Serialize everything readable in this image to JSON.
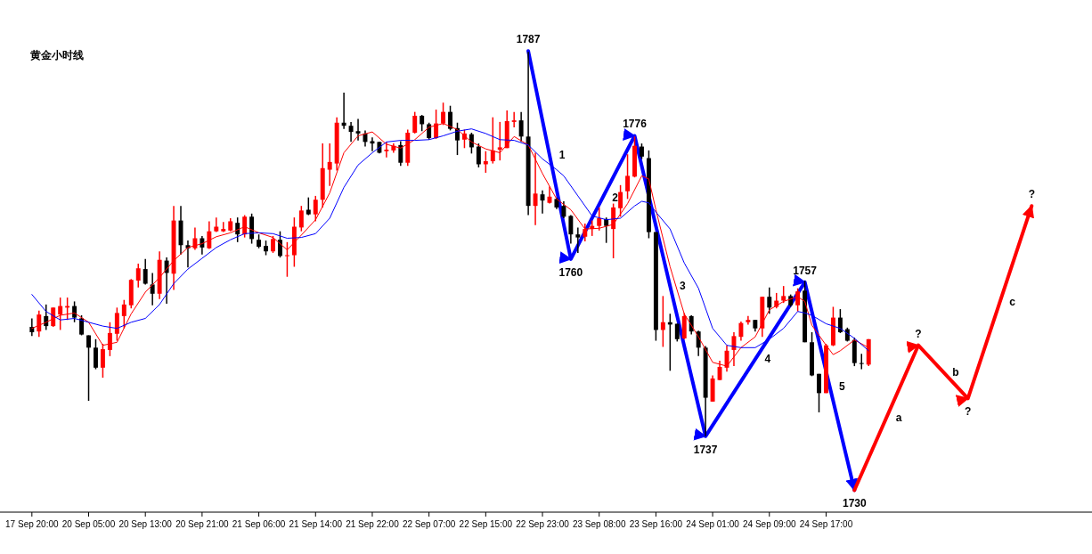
{
  "chart_data": {
    "type": "candlestick",
    "title": "黄金小时线",
    "categories": [
      "17 Sep 20:00",
      null,
      null,
      null,
      null,
      null,
      null,
      null,
      "20 Sep 05:00",
      null,
      null,
      null,
      null,
      null,
      null,
      null,
      "20 Sep 13:00",
      null,
      null,
      null,
      null,
      null,
      null,
      null,
      "20 Sep 21:00",
      null,
      null,
      null,
      null,
      null,
      null,
      null,
      "21 Sep 06:00",
      null,
      null,
      null,
      null,
      null,
      null,
      null,
      "21 Sep 14:00",
      null,
      null,
      null,
      null,
      null,
      null,
      null,
      "21 Sep 22:00",
      null,
      null,
      null,
      null,
      null,
      null,
      null,
      "22 Sep 07:00",
      null,
      null,
      null,
      null,
      null,
      null,
      null,
      "22 Sep 15:00",
      null,
      null,
      null,
      null,
      null,
      null,
      null,
      "22 Sep 23:00",
      null,
      null,
      null,
      null,
      null,
      null,
      null,
      "23 Sep 08:00",
      null,
      null,
      null,
      null,
      null,
      null,
      null,
      "23 Sep 16:00",
      null,
      null,
      null,
      null,
      null,
      null,
      null,
      "24 Sep 01:00",
      null,
      null,
      null,
      null,
      null,
      null,
      null,
      "24 Sep 09:00",
      null,
      null,
      null,
      null,
      null,
      null,
      null,
      "24 Sep 17:00",
      null,
      null,
      null,
      null,
      null,
      null,
      null,
      null,
      null,
      null,
      null,
      null,
      null,
      null,
      null,
      null,
      null,
      null,
      null,
      null,
      null,
      null,
      null,
      null,
      null,
      null,
      null,
      null,
      null,
      null,
      null,
      null,
      null,
      null,
      null,
      null,
      null
    ],
    "ohlc": [
      [
        1751.2,
        1752.3,
        1750.0,
        1750.5
      ],
      [
        1750.6,
        1753.3,
        1749.9,
        1752.8
      ],
      [
        1752.6,
        1754.1,
        1750.8,
        1751.3
      ],
      [
        1751.3,
        1753.7,
        1751.2,
        1753.7
      ],
      [
        1752.8,
        1755.0,
        1750.8,
        1753.9
      ],
      [
        1753.7,
        1755.0,
        1752.1,
        1753.9
      ],
      [
        1753.9,
        1754.5,
        1751.8,
        1752.4
      ],
      [
        1752.3,
        1752.7,
        1750.1,
        1750.2
      ],
      [
        1750.1,
        1750.1,
        1741.6,
        1748.5
      ],
      [
        1748.5,
        1749.6,
        1745.7,
        1745.9
      ],
      [
        1745.9,
        1749.0,
        1744.6,
        1748.3
      ],
      [
        1748.2,
        1751.8,
        1747.4,
        1750.4
      ],
      [
        1750.3,
        1753.7,
        1749.4,
        1753.0
      ],
      [
        1752.6,
        1754.7,
        1751.0,
        1754.1
      ],
      [
        1754.0,
        1757.4,
        1753.6,
        1757.3
      ],
      [
        1757.2,
        1759.4,
        1756.3,
        1758.8
      ],
      [
        1758.7,
        1760.0,
        1756.7,
        1756.8
      ],
      [
        1756.7,
        1758.2,
        1754.0,
        1755.5
      ],
      [
        1755.5,
        1761.0,
        1754.8,
        1759.9
      ],
      [
        1759.8,
        1760.2,
        1754.2,
        1758.2
      ],
      [
        1758.1,
        1766.9,
        1756.0,
        1765.0
      ],
      [
        1765.0,
        1766.9,
        1760.6,
        1761.8
      ],
      [
        1761.8,
        1762.4,
        1758.9,
        1761.4
      ],
      [
        1761.4,
        1764.1,
        1761.2,
        1762.7
      ],
      [
        1762.7,
        1763.0,
        1760.6,
        1761.5
      ],
      [
        1761.4,
        1764.9,
        1761.3,
        1763.6
      ],
      [
        1763.6,
        1765.4,
        1763.5,
        1764.2
      ],
      [
        1763.6,
        1764.8,
        1763.5,
        1763.9
      ],
      [
        1763.7,
        1765.3,
        1763.6,
        1764.9
      ],
      [
        1764.7,
        1765.4,
        1762.2,
        1763.2
      ],
      [
        1763.2,
        1765.7,
        1762.8,
        1765.5
      ],
      [
        1765.5,
        1765.9,
        1762.0,
        1762.6
      ],
      [
        1762.5,
        1763.2,
        1761.4,
        1761.6
      ],
      [
        1761.7,
        1762.4,
        1760.5,
        1761.0
      ],
      [
        1761.0,
        1763.0,
        1760.8,
        1762.6
      ],
      [
        1762.5,
        1763.6,
        1760.2,
        1760.4
      ],
      [
        1760.4,
        1762.2,
        1757.7,
        1760.5
      ],
      [
        1760.5,
        1765.4,
        1759.0,
        1764.2
      ],
      [
        1764.1,
        1766.9,
        1763.6,
        1766.3
      ],
      [
        1766.4,
        1768.0,
        1765.7,
        1765.8
      ],
      [
        1765.8,
        1768.2,
        1764.9,
        1767.7
      ],
      [
        1767.7,
        1775.0,
        1766.7,
        1771.8
      ],
      [
        1771.6,
        1775.0,
        1769.5,
        1772.6
      ],
      [
        1772.4,
        1778.4,
        1771.5,
        1777.7
      ],
      [
        1777.7,
        1781.6,
        1776.9,
        1777.3
      ],
      [
        1777.3,
        1777.8,
        1775.2,
        1776.5
      ],
      [
        1776.6,
        1778.2,
        1775.4,
        1776.3
      ],
      [
        1776.3,
        1776.7,
        1774.6,
        1775.2
      ],
      [
        1775.3,
        1775.8,
        1774.0,
        1775.0
      ],
      [
        1775.2,
        1775.2,
        1773.7,
        1773.8
      ],
      [
        1774.0,
        1775.2,
        1773.2,
        1774.2
      ],
      [
        1774.1,
        1775.0,
        1773.8,
        1774.7
      ],
      [
        1774.8,
        1775.3,
        1772.1,
        1772.5
      ],
      [
        1772.5,
        1776.8,
        1772.1,
        1776.4
      ],
      [
        1776.4,
        1779.1,
        1776.3,
        1778.6
      ],
      [
        1778.6,
        1778.7,
        1776.6,
        1777.5
      ],
      [
        1777.5,
        1777.7,
        1775.5,
        1775.7
      ],
      [
        1775.7,
        1779.4,
        1775.6,
        1777.6
      ],
      [
        1777.6,
        1780.3,
        1777.4,
        1779.1
      ],
      [
        1779.1,
        1779.9,
        1776.7,
        1776.9
      ],
      [
        1777.0,
        1777.7,
        1773.5,
        1775.4
      ],
      [
        1775.5,
        1776.8,
        1774.4,
        1776.3
      ],
      [
        1776.2,
        1776.4,
        1773.7,
        1774.5
      ],
      [
        1774.6,
        1775.0,
        1771.9,
        1772.3
      ],
      [
        1772.3,
        1774.0,
        1771.2,
        1772.7
      ],
      [
        1772.7,
        1778.4,
        1772.4,
        1774.1
      ],
      [
        1774.2,
        1777.8,
        1772.8,
        1774.5
      ],
      [
        1774.4,
        1779.3,
        1774.4,
        1777.9
      ],
      [
        1777.8,
        1779.1,
        1777.1,
        1778.0
      ],
      [
        1778.0,
        1779.1,
        1775.2,
        1775.9
      ],
      [
        1775.9,
        1786.9,
        1765.7,
        1766.9
      ],
      [
        1766.9,
        1773.8,
        1764.4,
        1768.5
      ],
      [
        1768.4,
        1768.9,
        1765.9,
        1767.6
      ],
      [
        1767.3,
        1769.4,
        1767.2,
        1768.1
      ],
      [
        1767.8,
        1768.0,
        1766.5,
        1766.7
      ],
      [
        1766.9,
        1767.5,
        1765.3,
        1765.5
      ],
      [
        1765.6,
        1765.7,
        1762.0,
        1763.2
      ],
      [
        1763.2,
        1764.1,
        1760.8,
        1762.8
      ],
      [
        1762.9,
        1764.6,
        1762.3,
        1763.9
      ],
      [
        1763.9,
        1765.0,
        1763.0,
        1764.3
      ],
      [
        1764.3,
        1766.7,
        1763.7,
        1765.3
      ],
      [
        1765.2,
        1765.4,
        1762.1,
        1764.3
      ],
      [
        1763.9,
        1767.2,
        1760.1,
        1766.7
      ],
      [
        1766.6,
        1769.6,
        1765.5,
        1768.7
      ],
      [
        1768.8,
        1773.6,
        1767.8,
        1770.8
      ],
      [
        1770.7,
        1775.9,
        1770.6,
        1774.7
      ],
      [
        1774.6,
        1775.0,
        1773.0,
        1773.3
      ],
      [
        1773.1,
        1774.1,
        1762.7,
        1763.5
      ],
      [
        1763.5,
        1763.5,
        1749.4,
        1750.8
      ],
      [
        1750.8,
        1755.2,
        1748.6,
        1751.8
      ],
      [
        1751.8,
        1752.9,
        1745.5,
        1751.5
      ],
      [
        1751.6,
        1751.6,
        1749.3,
        1749.6
      ],
      [
        1749.7,
        1753.0,
        1749.6,
        1752.6
      ],
      [
        1752.6,
        1752.7,
        1750.2,
        1750.6
      ],
      [
        1750.6,
        1750.7,
        1747.4,
        1748.5
      ],
      [
        1748.5,
        1748.7,
        1737.0,
        1742.0
      ],
      [
        1741.5,
        1744.9,
        1741.5,
        1744.5
      ],
      [
        1744.3,
        1746.8,
        1744.3,
        1746.0
      ],
      [
        1745.9,
        1748.8,
        1745.4,
        1748.1
      ],
      [
        1748.2,
        1750.5,
        1746.1,
        1750.0
      ],
      [
        1749.9,
        1751.9,
        1749.4,
        1751.7
      ],
      [
        1751.8,
        1752.6,
        1751.5,
        1752.1
      ],
      [
        1752.1,
        1752.1,
        1750.6,
        1751.0
      ],
      [
        1751.0,
        1755.1,
        1749.9,
        1755.1
      ],
      [
        1755.1,
        1756.3,
        1752.9,
        1753.7
      ],
      [
        1753.8,
        1755.6,
        1753.6,
        1754.6
      ],
      [
        1754.6,
        1756.5,
        1754.3,
        1755.2
      ],
      [
        1755.2,
        1755.4,
        1753.8,
        1754.0
      ],
      [
        1754.0,
        1756.2,
        1753.2,
        1755.8
      ],
      [
        1755.9,
        1757.2,
        1749.2,
        1749.2
      ],
      [
        1749.2,
        1750.5,
        1744.8,
        1744.9
      ],
      [
        1745.1,
        1745.1,
        1740.1,
        1742.6
      ],
      [
        1742.6,
        1749.0,
        1742.6,
        1748.8
      ],
      [
        1748.8,
        1753.8,
        1748.7,
        1752.4
      ],
      [
        1752.4,
        1753.5,
        1750.4,
        1750.5
      ],
      [
        1750.9,
        1751.1,
        1749.3,
        1749.4
      ],
      [
        1749.5,
        1749.8,
        1746.1,
        1746.5
      ],
      [
        1746.5,
        1747.7,
        1745.7,
        1746.4
      ],
      [
        1746.3,
        1749.6,
        1746.1,
        1749.6
      ],
      null,
      null,
      null,
      null,
      null,
      null,
      null,
      null,
      null,
      null,
      null,
      null,
      null,
      null,
      null,
      null,
      null,
      null,
      null,
      null,
      null,
      null,
      null,
      null,
      null,
      null,
      null,
      null,
      null,
      null,
      null
    ],
    "series": [
      {
        "type": "line",
        "color": "#ff0000",
        "values": [
          1751.0,
          null,
          1751.8,
          null,
          1752.7,
          null,
          1753.0,
          null,
          1751.8,
          null,
          1748.8,
          null,
          1749.2,
          null,
          1752.9,
          null,
          1755.7,
          null,
          1757.6,
          null,
          1759.8,
          null,
          1761.5,
          null,
          1762.0,
          null,
          1762.9,
          null,
          1763.4,
          null,
          1764.2,
          null,
          1763.4,
          null,
          1762.8,
          null,
          1761.2,
          null,
          1763.1,
          null,
          1765.1,
          null,
          1768.6,
          null,
          1773.8,
          null,
          1776.0,
          null,
          1776.5,
          null,
          1774.9,
          null,
          1774.4,
          null,
          1775.5,
          null,
          1777.1,
          null,
          1777.6,
          null,
          1776.8,
          null,
          1775.2,
          null,
          1774.3,
          null,
          1773.8,
          null,
          1775.9,
          null,
          1774.8,
          null,
          1771.1,
          null,
          1767.8,
          null,
          1766.4,
          null,
          1763.9,
          null,
          1764.0,
          null,
          1764.5,
          null,
          1767.2,
          null,
          1770.8,
          1770.4,
          1766.4,
          null,
          1759.0,
          null,
          1752.9,
          null,
          1749.9,
          null,
          1746.6,
          null,
          1746.1,
          null,
          1748.5,
          null,
          1749.9,
          null,
          1753.4,
          null,
          1754.5,
          null,
          1755.1,
          1754.5,
          1751.4,
          null,
          1748.8,
          1747.6,
          1748.1,
          null,
          1749.5,
          null,
          1748.5,
          null,
          null,
          null,
          null,
          null,
          null,
          null,
          null,
          null,
          null,
          null,
          null,
          null,
          null,
          null,
          null,
          null,
          null,
          null,
          null,
          null,
          null,
          null,
          null,
          null,
          null,
          null,
          null,
          null,
          null,
          null
        ]
      },
      {
        "type": "line",
        "color": "#0000ff",
        "values": [
          1755.4,
          null,
          1753.2,
          null,
          1752.1,
          null,
          1752.3,
          null,
          1751.8,
          null,
          1751.3,
          null,
          1751.0,
          null,
          1751.8,
          null,
          1752.3,
          null,
          1754.1,
          null,
          1756.8,
          null,
          1758.7,
          null,
          1760.1,
          null,
          1761.5,
          null,
          1762.5,
          null,
          1763.3,
          null,
          1763.4,
          null,
          1763.3,
          null,
          1762.7,
          null,
          1762.8,
          null,
          1763.3,
          null,
          1765.3,
          null,
          1769.3,
          null,
          1772.2,
          null,
          1773.8,
          null,
          1775.2,
          null,
          1775.4,
          null,
          1775.4,
          null,
          1775.5,
          null,
          1776.0,
          null,
          1776.6,
          null,
          1776.9,
          null,
          1776.3,
          null,
          1775.5,
          null,
          1775.4,
          null,
          1774.8,
          null,
          1773.0,
          null,
          1771.6,
          1770.8,
          null,
          1768.2,
          null,
          1765.6,
          null,
          1765.1,
          null,
          1765.3,
          null,
          1766.9,
          1767.5,
          1767.3,
          1766.1,
          null,
          1763.9,
          null,
          1759.5,
          null,
          1756.2,
          null,
          1751.0,
          null,
          1748.8,
          null,
          1748.5,
          null,
          1748.5,
          null,
          1749.6,
          null,
          1751.0,
          null,
          1753.2,
          1753.0,
          1752.7,
          null,
          1751.6,
          null,
          1751.0,
          null,
          1749.7,
          null,
          1748.1,
          null,
          null,
          null,
          null,
          null,
          null,
          null,
          null,
          null,
          null,
          null,
          null,
          null,
          null,
          null,
          null,
          null,
          null,
          null,
          null,
          null,
          null,
          null,
          null,
          null,
          null,
          null,
          null,
          null,
          null,
          null
        ]
      },
      {
        "type": "line",
        "color": "#0000ff",
        "values": [
          null,
          null,
          null,
          null,
          null,
          null,
          null,
          null,
          null,
          null,
          null,
          null,
          null,
          null,
          null,
          null,
          null,
          null,
          null,
          null,
          null,
          null,
          null,
          null,
          null,
          null,
          null,
          null,
          null,
          null,
          null,
          null,
          null,
          null,
          null,
          null,
          null,
          null,
          null,
          null,
          null,
          null,
          null,
          null,
          null,
          null,
          null,
          null,
          null,
          null,
          null,
          null,
          null,
          null,
          null,
          null,
          null,
          null,
          null,
          null,
          null,
          null,
          null,
          null,
          null,
          null,
          null,
          null,
          null,
          null,
          1787,
          null,
          null,
          null,
          null,
          null,
          1760,
          null,
          null,
          null,
          null,
          null,
          null,
          null,
          null,
          1776,
          null,
          null,
          null,
          null,
          null,
          null,
          null,
          null,
          null,
          1737,
          null,
          null,
          null,
          null,
          null,
          null,
          null,
          null,
          null,
          null,
          null,
          null,
          null,
          1757,
          null,
          null,
          null,
          null,
          null,
          null,
          1730,
          null,
          null,
          null,
          null,
          null,
          null,
          null,
          null,
          null,
          null,
          null,
          null,
          null,
          null,
          null,
          null,
          null,
          null,
          null,
          null,
          null,
          null,
          null,
          null,
          null,
          null,
          null,
          null,
          null,
          null,
          null,
          null,
          null
        ],
        "value_labels": [
          null,
          null,
          null,
          null,
          null,
          null,
          null,
          null,
          null,
          null,
          null,
          null,
          null,
          null,
          null,
          null,
          null,
          null,
          null,
          null,
          null,
          null,
          null,
          null,
          null,
          null,
          null,
          null,
          null,
          null,
          null,
          null,
          null,
          null,
          null,
          null,
          null,
          null,
          null,
          null,
          null,
          null,
          null,
          null,
          null,
          null,
          null,
          null,
          null,
          null,
          null,
          null,
          null,
          null,
          null,
          null,
          null,
          null,
          null,
          null,
          null,
          null,
          null,
          null,
          null,
          null,
          null,
          null,
          null,
          null,
          "1787",
          null,
          null,
          null,
          null,
          null,
          "1760",
          null,
          null,
          null,
          null,
          null,
          null,
          null,
          null,
          "1776",
          null,
          null,
          null,
          null,
          null,
          null,
          null,
          null,
          null,
          "1737",
          null,
          null,
          null,
          null,
          null,
          null,
          null,
          null,
          null,
          null,
          null,
          null,
          null,
          "1757",
          null,
          null,
          null,
          null,
          null,
          null,
          "1730",
          null,
          null,
          null,
          null,
          null,
          null,
          null,
          null,
          null,
          null,
          null,
          null,
          null,
          null,
          null,
          null,
          null,
          null,
          null,
          null,
          null,
          null,
          null,
          null,
          null,
          null,
          null,
          null,
          null,
          null,
          null,
          null,
          null
        ]
      },
      {
        "type": "line",
        "color": "#ff0000",
        "values": [
          null,
          null,
          null,
          null,
          null,
          null,
          null,
          null,
          null,
          null,
          null,
          null,
          null,
          null,
          null,
          null,
          null,
          null,
          null,
          null,
          null,
          null,
          null,
          null,
          null,
          null,
          null,
          null,
          null,
          null,
          null,
          null,
          null,
          null,
          null,
          null,
          null,
          null,
          null,
          null,
          null,
          null,
          null,
          null,
          null,
          null,
          null,
          null,
          null,
          null,
          null,
          null,
          null,
          null,
          null,
          null,
          null,
          null,
          null,
          null,
          null,
          null,
          null,
          null,
          null,
          null,
          null,
          null,
          null,
          null,
          null,
          null,
          null,
          null,
          null,
          null,
          null,
          null,
          null,
          null,
          null,
          null,
          null,
          null,
          null,
          null,
          null,
          null,
          null,
          null,
          null,
          null,
          null,
          null,
          null,
          null,
          null,
          null,
          null,
          null,
          null,
          null,
          null,
          null,
          null,
          null,
          null,
          null,
          null,
          null,
          null,
          null,
          null,
          null,
          null,
          null,
          1730,
          null,
          null,
          null,
          null,
          null,
          null,
          null,
          null,
          1748.8,
          null,
          null,
          null,
          null,
          null,
          null,
          1741.9,
          null,
          null,
          null,
          null,
          null,
          null,
          null,
          null,
          1766.9,
          null,
          null,
          null,
          null,
          null,
          null,
          null,
          null
        ],
        "value_labels": [
          null,
          null,
          null,
          null,
          null,
          null,
          null,
          null,
          null,
          null,
          null,
          null,
          null,
          null,
          null,
          null,
          null,
          null,
          null,
          null,
          null,
          null,
          null,
          null,
          null,
          null,
          null,
          null,
          null,
          null,
          null,
          null,
          null,
          null,
          null,
          null,
          null,
          null,
          null,
          null,
          null,
          null,
          null,
          null,
          null,
          null,
          null,
          null,
          null,
          null,
          null,
          null,
          null,
          null,
          null,
          null,
          null,
          null,
          null,
          null,
          null,
          null,
          null,
          null,
          null,
          null,
          null,
          null,
          null,
          null,
          null,
          null,
          null,
          null,
          null,
          null,
          null,
          null,
          null,
          null,
          null,
          null,
          null,
          null,
          null,
          null,
          null,
          null,
          null,
          null,
          null,
          null,
          null,
          null,
          null,
          null,
          null,
          null,
          null,
          null,
          null,
          null,
          null,
          null,
          null,
          null,
          null,
          null,
          null,
          null,
          null,
          null,
          null,
          null,
          null,
          null,
          null,
          null,
          null,
          null,
          null,
          null,
          null,
          null,
          null,
          "?",
          null,
          null,
          null,
          null,
          null,
          null,
          "?",
          null,
          null,
          null,
          null,
          null,
          null,
          null,
          null,
          "?",
          null,
          null,
          null,
          null,
          null,
          null,
          null,
          null
        ]
      }
    ],
    "annotations": [
      "1",
      "2",
      "3",
      "4",
      "5",
      "a",
      "b",
      "c"
    ],
    "tick_labels": "x"
  }
}
